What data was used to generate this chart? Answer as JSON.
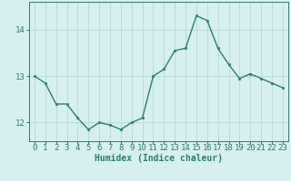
{
  "x": [
    0,
    1,
    2,
    3,
    4,
    5,
    6,
    7,
    8,
    9,
    10,
    11,
    12,
    13,
    14,
    15,
    16,
    17,
    18,
    19,
    20,
    21,
    22,
    23
  ],
  "y": [
    13.0,
    12.85,
    12.4,
    12.4,
    12.1,
    11.85,
    12.0,
    11.95,
    11.85,
    12.0,
    12.1,
    13.0,
    13.15,
    13.55,
    13.6,
    14.3,
    14.2,
    13.6,
    13.25,
    12.95,
    13.05,
    12.95,
    12.85,
    12.75
  ],
  "line_color": "#2e7d6e",
  "marker_color": "#2e7d6e",
  "bg_color": "#d6f0f0",
  "grid_color": "#b8d8d8",
  "xlabel": "Humidex (Indice chaleur)",
  "xlim": [
    -0.5,
    23.5
  ],
  "ylim": [
    11.6,
    14.6
  ],
  "yticks": [
    12,
    13,
    14
  ],
  "xticks": [
    0,
    1,
    2,
    3,
    4,
    5,
    6,
    7,
    8,
    9,
    10,
    11,
    12,
    13,
    14,
    15,
    16,
    17,
    18,
    19,
    20,
    21,
    22,
    23
  ],
  "axis_color": "#2e7d6e",
  "label_fontsize": 7,
  "tick_fontsize": 6.5
}
